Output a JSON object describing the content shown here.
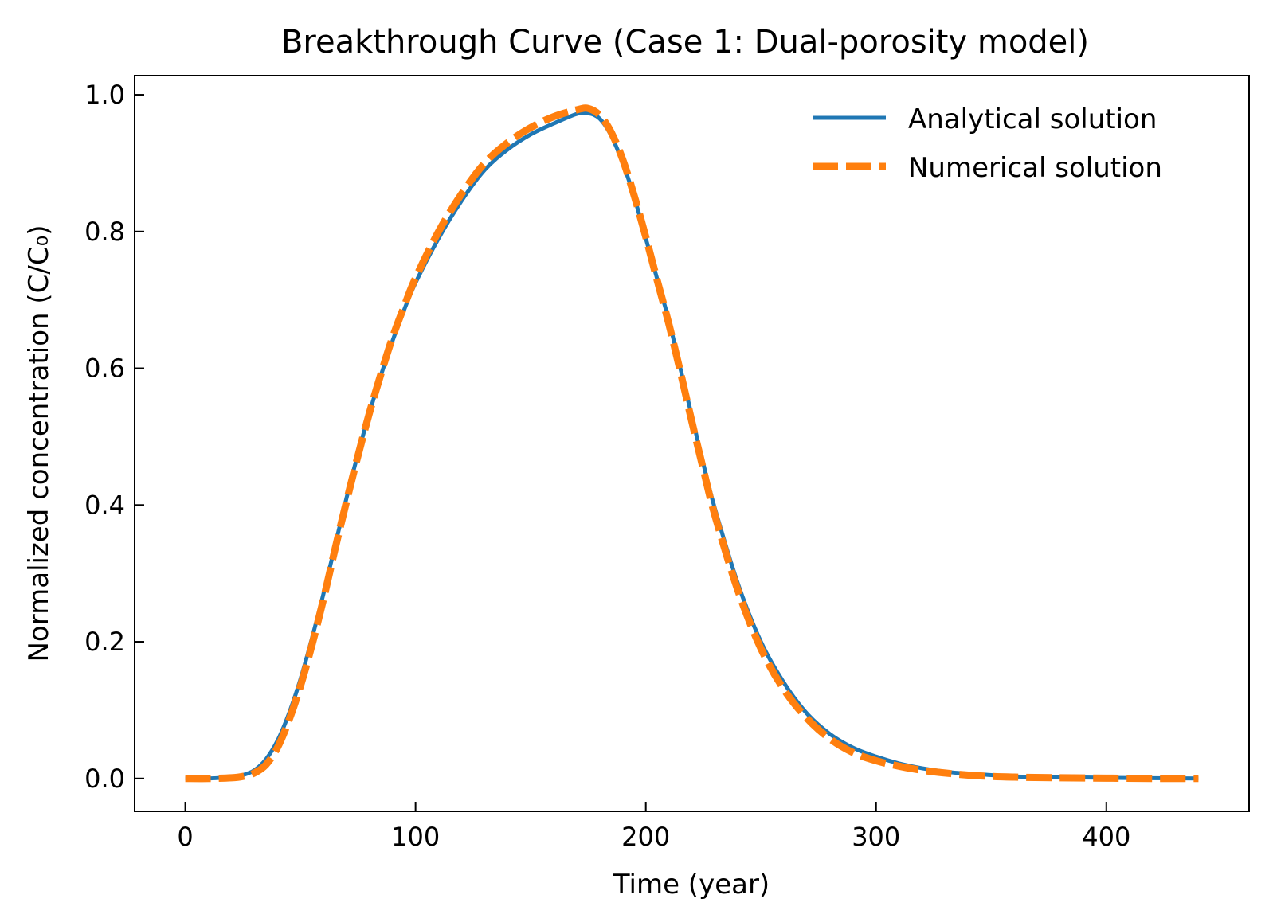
{
  "chart_data": {
    "type": "line",
    "title": "Breakthrough Curve (Case 1: Dual-porosity model)",
    "xlabel": "Time (year)",
    "ylabel": "Normalized concentration (C/C₀)",
    "xlim": [
      -22,
      462
    ],
    "ylim": [
      -0.048,
      1.028
    ],
    "x_ticks": [
      0,
      100,
      200,
      300,
      400
    ],
    "y_ticks": [
      0.0,
      0.2,
      0.4,
      0.6,
      0.8,
      1.0
    ],
    "x_tick_labels": [
      "0",
      "100",
      "200",
      "300",
      "400"
    ],
    "y_tick_labels": [
      "0.0",
      "0.2",
      "0.4",
      "0.6",
      "0.8",
      "1.0"
    ],
    "grid": false,
    "legend_position": "top-right",
    "series": [
      {
        "name": "Analytical solution",
        "color": "#1f77b4",
        "style": "solid",
        "x": [
          0,
          10,
          20,
          25,
          30,
          35,
          40,
          45,
          50,
          55,
          60,
          65,
          70,
          75,
          80,
          85,
          90,
          95,
          100,
          110,
          120,
          130,
          140,
          150,
          160,
          170,
          175,
          180,
          185,
          190,
          195,
          200,
          205,
          210,
          215,
          220,
          225,
          230,
          240,
          250,
          260,
          270,
          280,
          290,
          300,
          310,
          320,
          330,
          340,
          350,
          360,
          380,
          400,
          420,
          440
        ],
        "y": [
          0,
          0,
          0.002,
          0.005,
          0.012,
          0.028,
          0.055,
          0.095,
          0.145,
          0.205,
          0.27,
          0.34,
          0.41,
          0.475,
          0.535,
          0.59,
          0.64,
          0.685,
          0.725,
          0.79,
          0.845,
          0.89,
          0.92,
          0.942,
          0.958,
          0.972,
          0.973,
          0.965,
          0.94,
          0.9,
          0.85,
          0.79,
          0.73,
          0.67,
          0.6,
          0.53,
          0.46,
          0.395,
          0.285,
          0.2,
          0.14,
          0.095,
          0.065,
          0.045,
          0.032,
          0.022,
          0.015,
          0.01,
          0.007,
          0.005,
          0.003,
          0.002,
          0.001,
          0.0005,
          0
        ]
      },
      {
        "name": "Numerical solution",
        "color": "#ff7f0e",
        "style": "dashed",
        "x": [
          0,
          10,
          20,
          25,
          30,
          35,
          40,
          45,
          50,
          55,
          60,
          65,
          70,
          75,
          80,
          85,
          90,
          95,
          100,
          110,
          120,
          130,
          140,
          150,
          160,
          170,
          175,
          180,
          185,
          190,
          195,
          200,
          205,
          210,
          215,
          220,
          225,
          230,
          240,
          250,
          260,
          270,
          280,
          290,
          300,
          310,
          320,
          330,
          340,
          350,
          360,
          380,
          400,
          420,
          440
        ],
        "y": [
          0,
          0,
          0.001,
          0.003,
          0.008,
          0.02,
          0.045,
          0.085,
          0.135,
          0.195,
          0.262,
          0.335,
          0.405,
          0.472,
          0.535,
          0.592,
          0.645,
          0.69,
          0.732,
          0.8,
          0.855,
          0.9,
          0.93,
          0.952,
          0.968,
          0.978,
          0.98,
          0.97,
          0.945,
          0.905,
          0.852,
          0.792,
          0.728,
          0.665,
          0.595,
          0.522,
          0.452,
          0.385,
          0.275,
          0.19,
          0.13,
          0.088,
          0.058,
          0.038,
          0.026,
          0.018,
          0.012,
          0.008,
          0.005,
          0.003,
          0.002,
          0.001,
          0.0005,
          0,
          0
        ]
      }
    ]
  }
}
